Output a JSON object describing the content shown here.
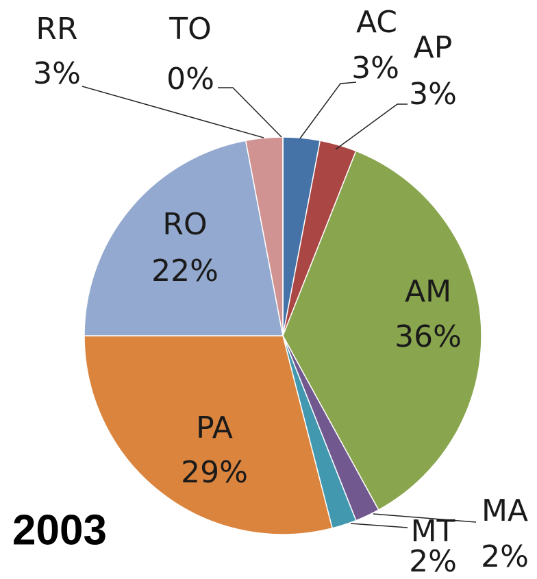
{
  "chart_data": {
    "type": "pie",
    "title": "2003",
    "categories": [
      "AC",
      "AP",
      "AM",
      "MA",
      "MT",
      "PA",
      "RO",
      "RR",
      "TO"
    ],
    "values": [
      3,
      3,
      36,
      2,
      2,
      29,
      22,
      3,
      0
    ],
    "value_labels": [
      "3%",
      "3%",
      "36%",
      "2%",
      "2%",
      "29%",
      "22%",
      "3%",
      "0%"
    ],
    "colors": [
      "#4572a7",
      "#aa4643",
      "#89a54e",
      "#71588f",
      "#4198af",
      "#db843d",
      "#93a9cf",
      "#d19392",
      "#b9cd96"
    ]
  }
}
